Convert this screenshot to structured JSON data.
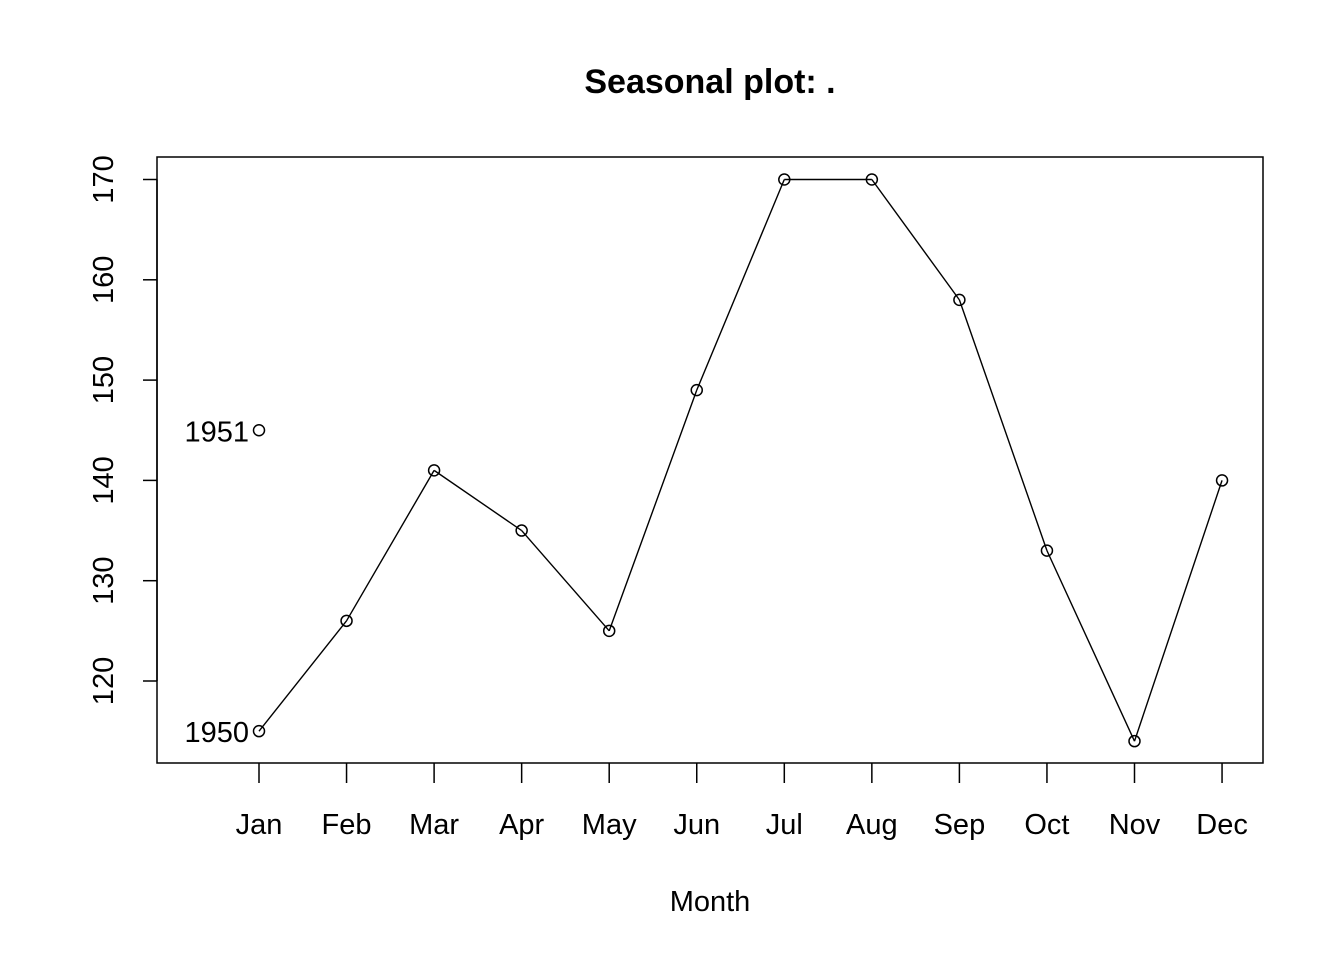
{
  "chart_data": {
    "type": "line",
    "title": "Seasonal plot: .",
    "xlabel": "Month",
    "ylabel": "",
    "categories": [
      "Jan",
      "Feb",
      "Mar",
      "Apr",
      "May",
      "Jun",
      "Jul",
      "Aug",
      "Sep",
      "Oct",
      "Nov",
      "Dec"
    ],
    "ylim": [
      112,
      172
    ],
    "yticks": [
      120,
      130,
      140,
      150,
      160,
      170
    ],
    "grid": false,
    "legend": "none",
    "markers": "open-circle",
    "series": [
      {
        "name": "1950",
        "values": [
          115,
          126,
          141,
          135,
          125,
          149,
          170,
          170,
          158,
          133,
          114,
          140
        ]
      },
      {
        "name": "1951",
        "values": [
          145,
          null,
          null,
          null,
          null,
          null,
          null,
          null,
          null,
          null,
          null,
          null
        ]
      }
    ]
  },
  "colors": {
    "line": "#000000",
    "background": "#ffffff"
  }
}
